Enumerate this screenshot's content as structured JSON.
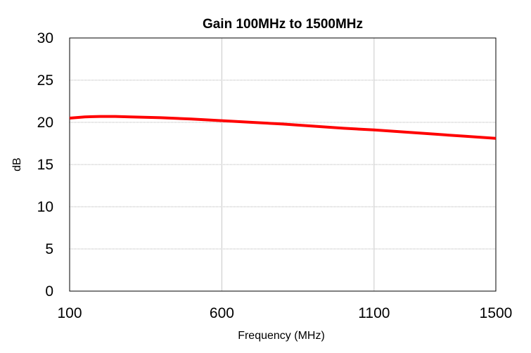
{
  "chart_data": {
    "type": "line",
    "title": "Gain 100MHz to 1500MHz",
    "xlabel": "Frequency (MHz)",
    "ylabel": "dB",
    "xlim": [
      100,
      1500
    ],
    "ylim": [
      0,
      30
    ],
    "x_ticks": [
      100,
      600,
      1100,
      1500
    ],
    "y_ticks": [
      0,
      5,
      10,
      15,
      20,
      25,
      30
    ],
    "grid": true,
    "series": [
      {
        "color": "#ff0000",
        "x": [
          100,
          150,
          200,
          250,
          300,
          400,
          500,
          600,
          700,
          800,
          900,
          1000,
          1100,
          1200,
          1300,
          1400,
          1500
        ],
        "y": [
          20.5,
          20.65,
          20.7,
          20.7,
          20.65,
          20.55,
          20.4,
          20.2,
          20.0,
          19.8,
          19.55,
          19.3,
          19.1,
          18.85,
          18.6,
          18.35,
          18.1
        ]
      }
    ]
  }
}
